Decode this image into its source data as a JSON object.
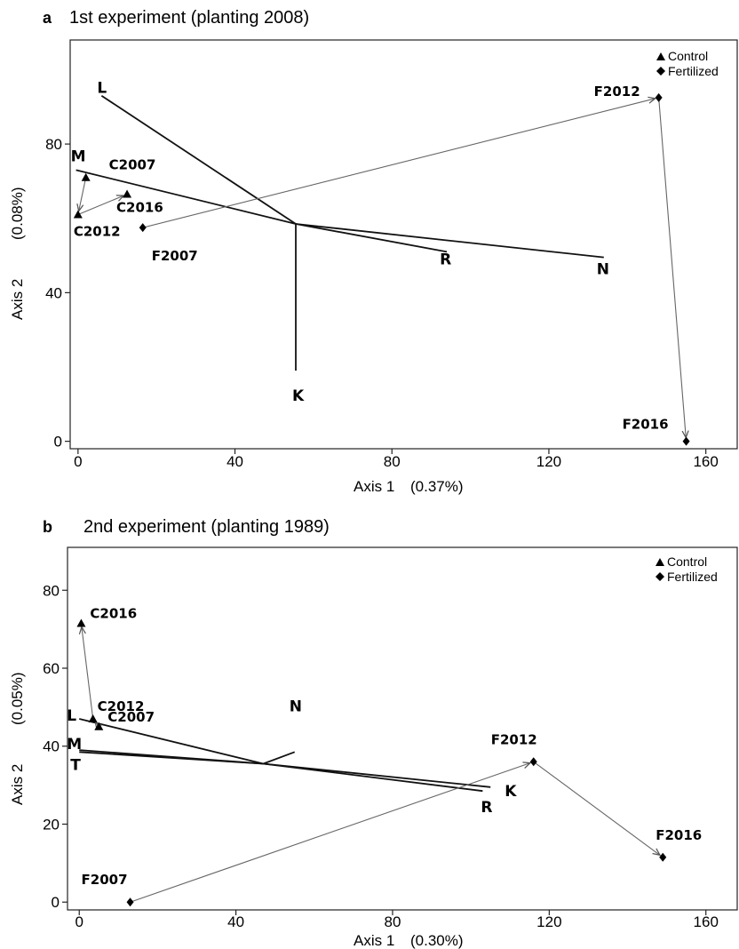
{
  "chart_data": [
    {
      "type": "scatter",
      "panel": "a",
      "title": "1st experiment (planting 2008)",
      "xlabel": "Axis 1",
      "xlabel_pct": "(0.37%)",
      "ylabel": "Axis 2",
      "ylabel_pct": "(0.08%)",
      "xlim": [
        -2,
        168
      ],
      "ylim": [
        -2,
        108
      ],
      "xticks": [
        0,
        40,
        80,
        120,
        160
      ],
      "yticks": [
        0,
        40,
        80
      ],
      "legend": {
        "position": "top-right",
        "entries": [
          {
            "marker": "triangle",
            "label": "Control"
          },
          {
            "marker": "diamond",
            "label": "Fertilized"
          }
        ]
      },
      "points": [
        {
          "label": "C2007",
          "group": "Control",
          "x": 2,
          "y": 71
        },
        {
          "label": "C2012",
          "group": "Control",
          "x": 0,
          "y": 61
        },
        {
          "label": "C2016",
          "group": "Control",
          "x": 12.5,
          "y": 66.5
        },
        {
          "label": "F2007",
          "group": "Fertilized",
          "x": 16.5,
          "y": 57.5
        },
        {
          "label": "F2012",
          "group": "Fertilized",
          "x": 148,
          "y": 92.5
        },
        {
          "label": "F2016",
          "group": "Fertilized",
          "x": 155,
          "y": 0
        }
      ],
      "trajectories": [
        [
          "C2007",
          "C2012",
          "C2016"
        ],
        [
          "F2007",
          "F2012",
          "F2016"
        ]
      ],
      "vectors": {
        "origin": [
          55.5,
          58.5
        ],
        "items": [
          {
            "label": "L",
            "x": 6,
            "y": 93
          },
          {
            "label": "M",
            "x": -0.5,
            "y": 73
          },
          {
            "label": "R",
            "x": 94,
            "y": 51
          },
          {
            "label": "N",
            "x": 134,
            "y": 49.5
          },
          {
            "label": "K",
            "x": 55.5,
            "y": 19
          }
        ]
      }
    },
    {
      "type": "scatter",
      "panel": "b",
      "title": "2nd experiment (planting 1989)",
      "xlabel": "Axis 1",
      "xlabel_pct": "(0.30%)",
      "ylabel": "Axis 2",
      "ylabel_pct": "(0.05%)",
      "xlim": [
        -3,
        168
      ],
      "ylim": [
        -2,
        91
      ],
      "xticks": [
        0,
        40,
        80,
        120,
        160
      ],
      "yticks": [
        0,
        20,
        40,
        60,
        80
      ],
      "legend": {
        "position": "top-right",
        "entries": [
          {
            "marker": "triangle",
            "label": "Control"
          },
          {
            "marker": "diamond",
            "label": "Fertilized"
          }
        ]
      },
      "points": [
        {
          "label": "C2007",
          "group": "Control",
          "x": 5,
          "y": 45
        },
        {
          "label": "C2012",
          "group": "Control",
          "x": 3.5,
          "y": 47
        },
        {
          "label": "C2016",
          "group": "Control",
          "x": 0.5,
          "y": 71.5
        },
        {
          "label": "F2007",
          "group": "Fertilized",
          "x": 13,
          "y": 0
        },
        {
          "label": "F2012",
          "group": "Fertilized",
          "x": 116,
          "y": 36
        },
        {
          "label": "F2016",
          "group": "Fertilized",
          "x": 149,
          "y": 11.5
        }
      ],
      "trajectories": [
        [
          "C2007",
          "C2012",
          "C2016"
        ],
        [
          "F2007",
          "F2012",
          "F2016"
        ]
      ],
      "vectors": {
        "origin": [
          47,
          35.5
        ],
        "items": [
          {
            "label": "L",
            "x": 0,
            "y": 47
          },
          {
            "label": "M",
            "x": 0,
            "y": 39
          },
          {
            "label": "T",
            "x": 0,
            "y": 38.5
          },
          {
            "label": "N",
            "x": 55,
            "y": 38.5
          },
          {
            "label": "K",
            "x": 105,
            "y": 29.5
          },
          {
            "label": "R",
            "x": 103,
            "y": 28.5
          }
        ]
      }
    }
  ]
}
